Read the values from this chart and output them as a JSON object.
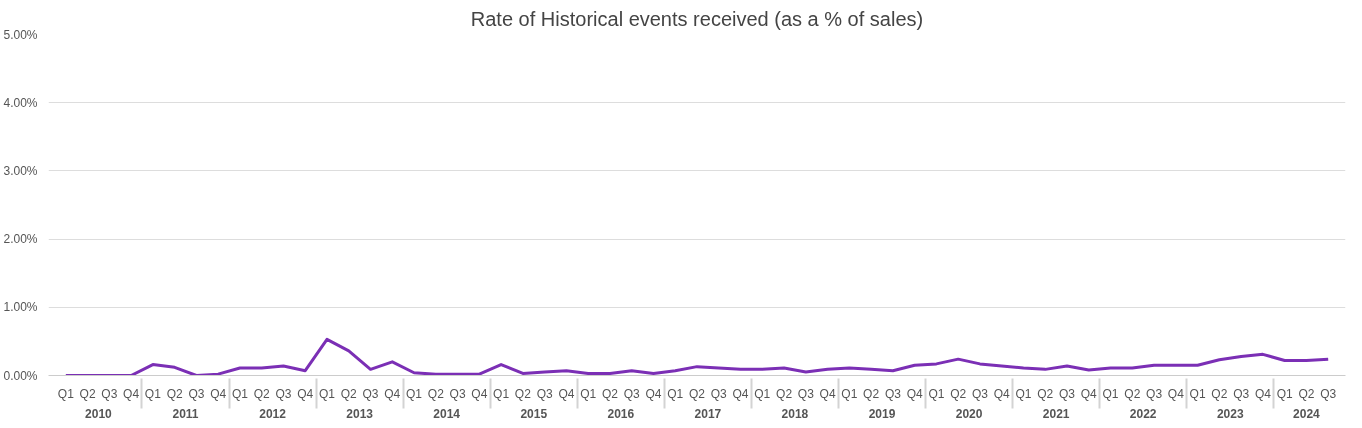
{
  "chart_data": {
    "type": "line",
    "title": "Rate of Historical events received (as a % of sales)",
    "categories": [
      "Q1",
      "Q2",
      "Q3",
      "Q4",
      "Q1",
      "Q2",
      "Q3",
      "Q4",
      "Q1",
      "Q2",
      "Q3",
      "Q4",
      "Q1",
      "Q2",
      "Q3",
      "Q4",
      "Q1",
      "Q2",
      "Q3",
      "Q4",
      "Q1",
      "Q2",
      "Q3",
      "Q4",
      "Q1",
      "Q2",
      "Q3",
      "Q4",
      "Q1",
      "Q2",
      "Q3",
      "Q4",
      "Q1",
      "Q2",
      "Q3",
      "Q4",
      "Q1",
      "Q2",
      "Q3",
      "Q4",
      "Q1",
      "Q2",
      "Q3",
      "Q4",
      "Q1",
      "Q2",
      "Q3",
      "Q4",
      "Q1",
      "Q2",
      "Q3",
      "Q4",
      "Q1",
      "Q2",
      "Q3",
      "Q4",
      "Q1",
      "Q2",
      "Q3"
    ],
    "annotations": [
      "2010",
      "2011",
      "2012",
      "2013",
      "2014",
      "2015",
      "2016",
      "2017",
      "2018",
      "2019",
      "2020",
      "2021",
      "2022",
      "2023",
      "2024"
    ],
    "series": [
      {
        "color": "#7b2fb5",
        "values": [
          0,
          0,
          0,
          0,
          0.16,
          0.12,
          0.0,
          0.02,
          0.11,
          0.11,
          0.14,
          0.07,
          0.53,
          0.36,
          0.09,
          0.2,
          0.04,
          0.02,
          0.02,
          0.02,
          0.16,
          0.03,
          0.05,
          0.07,
          0.03,
          0.03,
          0.07,
          0.03,
          0.07,
          0.13,
          0.11,
          0.09,
          0.09,
          0.11,
          0.05,
          0.09,
          0.11,
          0.09,
          0.07,
          0.15,
          0.17,
          0.24,
          0.17,
          0.14,
          0.11,
          0.09,
          0.14,
          0.08,
          0.11,
          0.11,
          0.15,
          0.15,
          0.15,
          0.23,
          0.28,
          0.31,
          0.22,
          0.22,
          0.24
        ]
      }
    ],
    "ylim": [
      0,
      5
    ],
    "yticks": [
      {
        "value": 0,
        "label": "0.00%"
      },
      {
        "value": 1,
        "label": "1.00%"
      },
      {
        "value": 2,
        "label": "2.00%"
      },
      {
        "value": 3,
        "label": "3.00%"
      },
      {
        "value": 4,
        "label": "4.00%"
      },
      {
        "value": 5,
        "label": "5.00%"
      }
    ],
    "grid": "y",
    "marker": "none",
    "line_style": "solid"
  }
}
